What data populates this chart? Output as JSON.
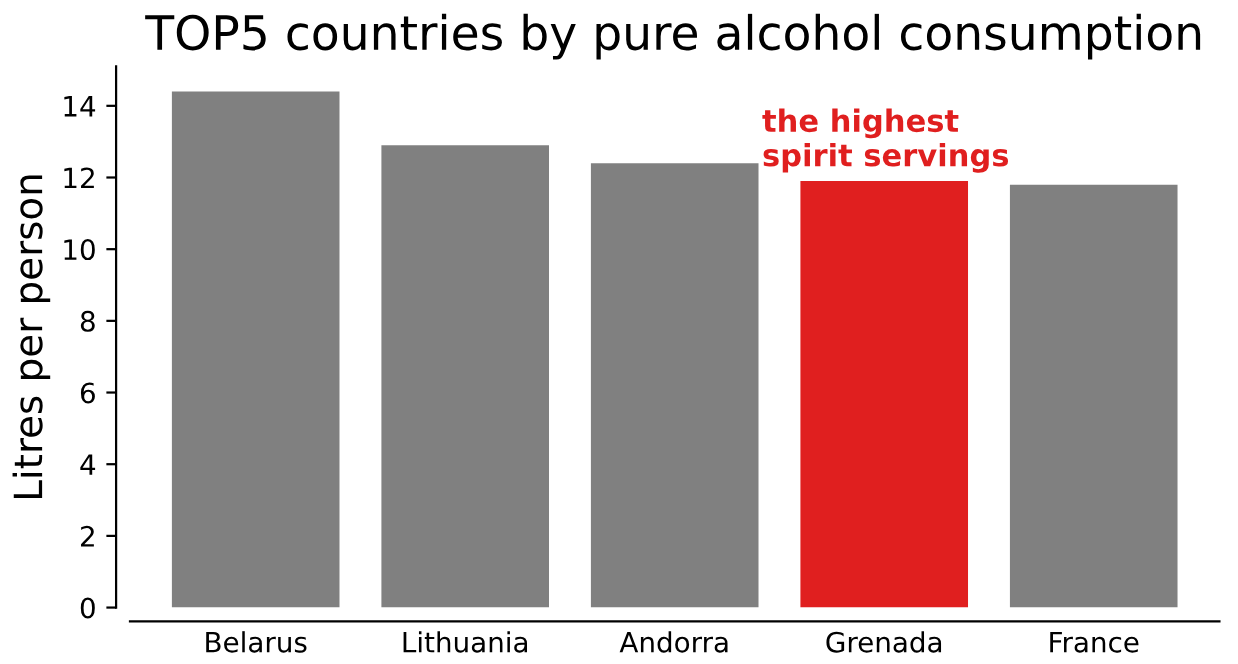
{
  "chart_data": {
    "type": "bar",
    "title": "TOP5 countries by pure alcohol consumption",
    "ylabel": "Litres per person",
    "categories": [
      "Belarus",
      "Lithuania",
      "Andorra",
      "Grenada",
      "France"
    ],
    "values": [
      14.4,
      12.9,
      12.4,
      11.9,
      11.8
    ],
    "colors": [
      "#808080",
      "#808080",
      "#808080",
      "#e01f1f",
      "#808080"
    ],
    "ylim": [
      0,
      15.1
    ],
    "yticks": [
      0,
      2,
      4,
      6,
      8,
      10,
      12,
      14
    ],
    "grid": false,
    "annotations": [
      {
        "text": "the highest\nspirit servings",
        "x": "Grenada",
        "y": 11.9
      }
    ]
  }
}
